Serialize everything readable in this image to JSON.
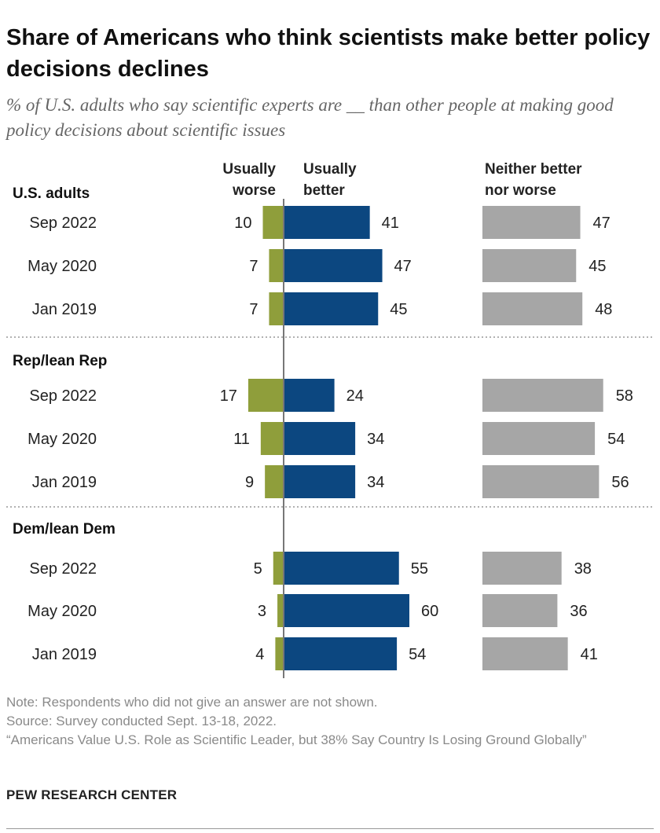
{
  "title": "Share of Americans who think scientists make better policy decisions declines",
  "subtitle": "% of U.S. adults who say scientific experts are __ than other people at making good policy decisions about scientific issues",
  "colors": {
    "worse": "#8f9e3b",
    "better": "#0c4780",
    "neither": "#a6a6a6",
    "axis": "#777777",
    "divider": "#999999"
  },
  "chart_data": {
    "type": "bar",
    "orientation": "horizontal-diverging",
    "series": [
      {
        "name": "Usually worse",
        "header": [
          "Usually",
          "worse"
        ]
      },
      {
        "name": "Usually better",
        "header": [
          "Usually",
          "better"
        ]
      },
      {
        "name": "Neither better nor worse",
        "header": [
          "Neither better",
          "nor worse"
        ]
      }
    ],
    "groups": [
      {
        "name": "U.S. adults",
        "rows": [
          {
            "label": "Sep 2022",
            "worse": 10,
            "better": 41,
            "neither": 47
          },
          {
            "label": "May 2020",
            "worse": 7,
            "better": 47,
            "neither": 45
          },
          {
            "label": "Jan 2019",
            "worse": 7,
            "better": 45,
            "neither": 48
          }
        ]
      },
      {
        "name": "Rep/lean Rep",
        "rows": [
          {
            "label": "Sep 2022",
            "worse": 17,
            "better": 24,
            "neither": 58
          },
          {
            "label": "May 2020",
            "worse": 11,
            "better": 34,
            "neither": 54
          },
          {
            "label": "Jan 2019",
            "worse": 9,
            "better": 34,
            "neither": 56
          }
        ]
      },
      {
        "name": "Dem/lean Dem",
        "rows": [
          {
            "label": "Sep 2022",
            "worse": 5,
            "better": 55,
            "neither": 38
          },
          {
            "label": "May 2020",
            "worse": 3,
            "better": 60,
            "neither": 36
          },
          {
            "label": "Jan 2019",
            "worse": 4,
            "better": 54,
            "neither": 41
          }
        ]
      }
    ]
  },
  "notes": {
    "note": "Note: Respondents who did not give an answer are not shown.",
    "source": "Source: Survey conducted Sept. 13-18, 2022.",
    "report": "“Americans Value U.S. Role as Scientific Leader, but 38% Say Country Is Losing Ground Globally”"
  },
  "brand": "PEW RESEARCH CENTER"
}
